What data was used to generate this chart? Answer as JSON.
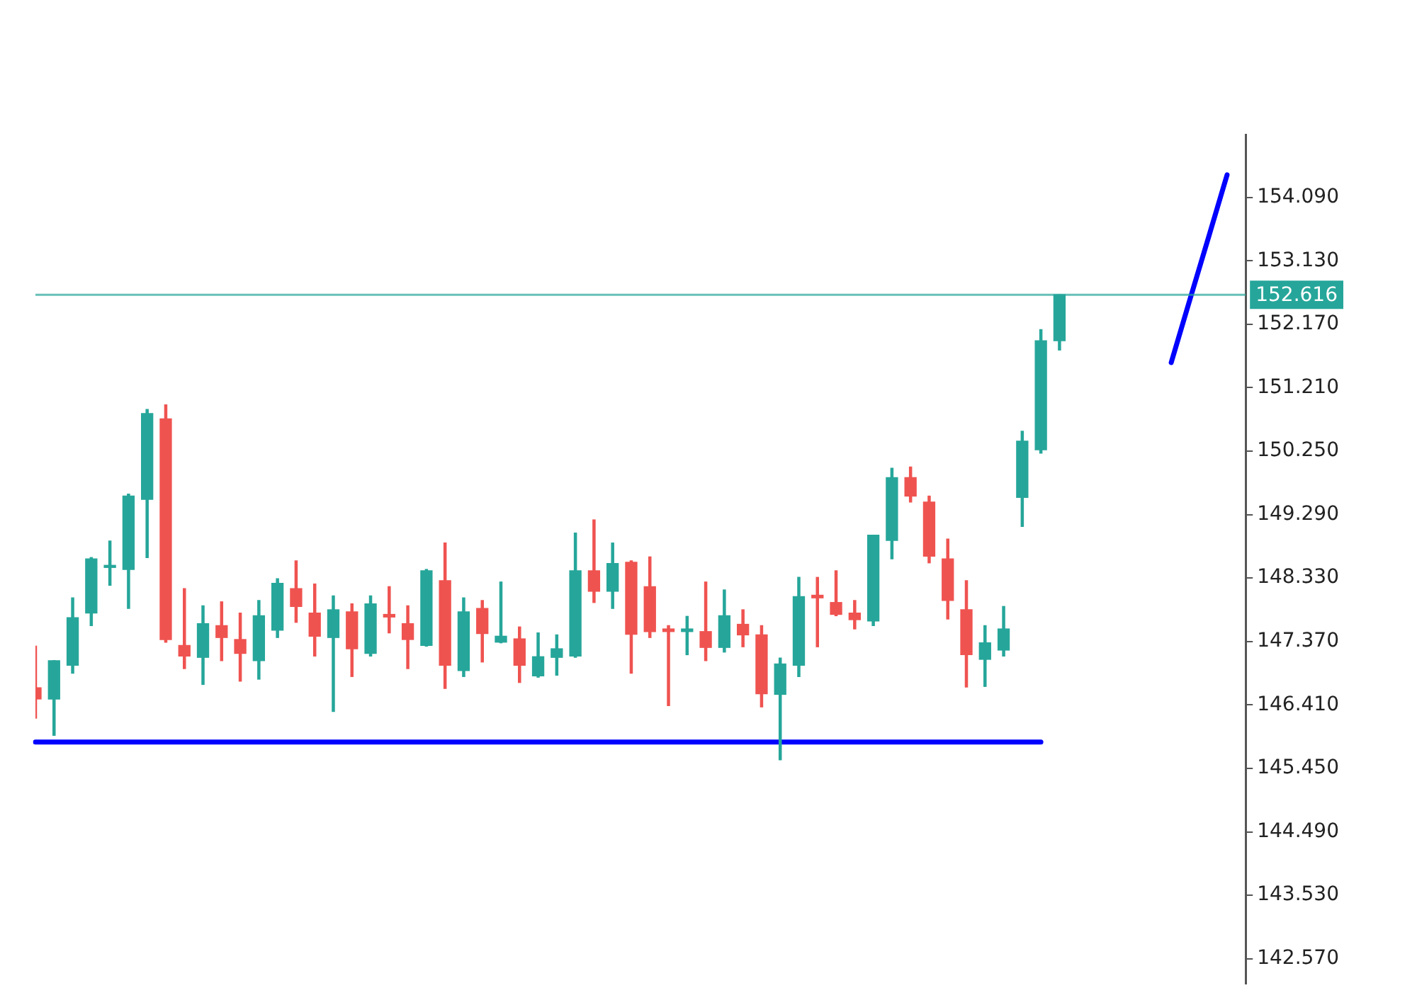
{
  "chart_data": {
    "type": "candlestick",
    "categories": [
      null,
      null,
      null,
      null,
      null,
      null,
      null,
      null,
      null,
      null,
      null,
      null,
      null,
      null,
      null,
      null,
      null,
      null,
      null,
      null,
      null,
      null,
      null,
      null,
      null,
      null,
      null,
      null,
      null,
      null,
      null,
      null,
      null,
      null,
      null,
      null,
      null,
      null,
      null,
      null,
      null,
      null,
      null,
      null,
      null,
      null,
      null,
      null,
      null,
      null,
      null,
      null,
      null,
      null,
      null,
      null,
      null,
      null,
      null,
      null,
      null,
      null,
      null,
      null,
      null,
      null
    ],
    "ohlc": [
      [
        146.67,
        147.3,
        146.21,
        146.5
      ],
      [
        146.5,
        147.08,
        145.95,
        147.08
      ],
      [
        147.01,
        148.03,
        146.89,
        147.73
      ],
      [
        147.8,
        148.64,
        147.61,
        148.62
      ],
      [
        148.49,
        148.89,
        148.22,
        148.52
      ],
      [
        148.46,
        149.6,
        147.87,
        149.57
      ],
      [
        149.52,
        150.88,
        148.64,
        150.82
      ],
      [
        150.74,
        150.95,
        147.36,
        147.4
      ],
      [
        147.31,
        148.17,
        146.96,
        147.15
      ],
      [
        147.13,
        147.91,
        146.72,
        147.64
      ],
      [
        147.61,
        147.97,
        147.08,
        147.43
      ],
      [
        147.4,
        147.8,
        146.77,
        147.19
      ],
      [
        147.08,
        147.99,
        146.8,
        147.76
      ],
      [
        147.54,
        148.32,
        147.43,
        148.25
      ],
      [
        148.17,
        148.59,
        147.66,
        147.9
      ],
      [
        147.8,
        148.24,
        147.15,
        147.45
      ],
      [
        147.43,
        148.06,
        146.31,
        147.85
      ],
      [
        147.82,
        147.94,
        146.84,
        147.26
      ],
      [
        147.19,
        148.06,
        147.15,
        147.94
      ],
      [
        147.78,
        148.2,
        147.5,
        147.74
      ],
      [
        147.64,
        147.91,
        146.96,
        147.4
      ],
      [
        147.31,
        148.46,
        147.3,
        148.44
      ],
      [
        148.29,
        148.86,
        146.66,
        147.01
      ],
      [
        146.93,
        148.03,
        146.84,
        147.82
      ],
      [
        147.87,
        147.99,
        147.06,
        147.49
      ],
      [
        147.36,
        148.27,
        147.35,
        147.45
      ],
      [
        147.41,
        147.59,
        146.75,
        147.01
      ],
      [
        146.85,
        147.5,
        146.83,
        147.14
      ],
      [
        147.13,
        147.47,
        146.86,
        147.26
      ],
      [
        147.15,
        149.01,
        147.13,
        148.44
      ],
      [
        148.44,
        149.21,
        147.96,
        148.13
      ],
      [
        148.13,
        148.86,
        147.87,
        148.55
      ],
      [
        148.57,
        148.59,
        146.89,
        147.48
      ],
      [
        148.2,
        148.65,
        147.43,
        147.52
      ],
      [
        147.56,
        147.61,
        146.4,
        147.52
      ],
      [
        147.52,
        147.75,
        147.17,
        147.56
      ],
      [
        147.52,
        148.27,
        147.08,
        147.28
      ],
      [
        147.28,
        148.15,
        147.21,
        147.76
      ],
      [
        147.63,
        147.85,
        147.29,
        147.47
      ],
      [
        147.47,
        147.61,
        146.38,
        146.58
      ],
      [
        146.57,
        147.12,
        145.58,
        147.03
      ],
      [
        147.01,
        148.34,
        146.84,
        148.05
      ],
      [
        148.07,
        148.34,
        147.29,
        148.03
      ],
      [
        147.96,
        148.44,
        147.76,
        147.78
      ],
      [
        147.8,
        147.99,
        147.56,
        147.7
      ],
      [
        147.68,
        148.98,
        147.61,
        148.98
      ],
      [
        148.9,
        149.99,
        148.62,
        149.85
      ],
      [
        149.85,
        150.01,
        149.48,
        149.57
      ],
      [
        149.48,
        149.57,
        148.56,
        148.66
      ],
      [
        148.62,
        148.92,
        147.71,
        147.99
      ],
      [
        147.85,
        148.29,
        146.68,
        147.17
      ],
      [
        147.1,
        147.61,
        146.69,
        147.35
      ],
      [
        147.24,
        147.9,
        147.15,
        147.56
      ],
      [
        149.55,
        150.55,
        149.11,
        150.4
      ],
      [
        150.27,
        152.09,
        150.22,
        151.92
      ],
      [
        151.92,
        152.616,
        151.78,
        152.616
      ],
      null,
      null,
      null,
      null,
      null,
      null,
      null,
      null,
      null,
      null
    ],
    "colors": [
      "#ef5350",
      "#26a69a",
      "#26a69a",
      "#26a69a",
      "#26a69a",
      "#26a69a",
      "#26a69a",
      "#ef5350",
      "#ef5350",
      "#26a69a",
      "#ef5350",
      "#ef5350",
      "#26a69a",
      "#26a69a",
      "#ef5350",
      "#ef5350",
      "#26a69a",
      "#ef5350",
      "#26a69a",
      "#ef5350",
      "#ef5350",
      "#26a69a",
      "#ef5350",
      "#26a69a",
      "#ef5350",
      "#26a69a",
      "#ef5350",
      "#26a69a",
      "#26a69a",
      "#26a69a",
      "#ef5350",
      "#26a69a",
      "#ef5350",
      "#ef5350",
      "#ef5350",
      "#26a69a",
      "#ef5350",
      "#26a69a",
      "#ef5350",
      "#ef5350",
      "#26a69a",
      "#26a69a",
      "#ef5350",
      "#ef5350",
      "#ef5350",
      "#26a69a",
      "#26a69a",
      "#ef5350",
      "#ef5350",
      "#ef5350",
      "#ef5350",
      "#26a69a",
      "#26a69a",
      "#26a69a",
      "#26a69a",
      "#26a69a",
      null,
      null,
      null,
      null,
      null,
      null,
      null,
      null,
      null,
      null
    ],
    "series": [
      {
        "type": "line",
        "color": "#0000ff",
        "values": [
          145.85,
          145.85,
          145.85,
          145.85,
          145.85,
          145.85,
          145.85,
          145.85,
          145.85,
          145.85,
          145.85,
          145.85,
          145.85,
          145.85,
          145.85,
          145.85,
          145.85,
          145.85,
          145.85,
          145.85,
          145.85,
          145.85,
          145.85,
          145.85,
          145.85,
          145.85,
          145.85,
          145.85,
          145.85,
          145.85,
          145.85,
          145.85,
          145.85,
          145.85,
          145.85,
          145.85,
          145.85,
          145.85,
          145.85,
          145.85,
          145.85,
          145.85,
          145.85,
          145.85,
          145.85,
          145.85,
          145.85,
          145.85,
          145.85,
          145.85,
          145.85,
          145.85,
          145.85,
          145.85,
          145.85,
          null,
          null,
          null,
          null,
          null,
          null,
          null,
          null,
          null,
          null,
          null
        ]
      },
      {
        "type": "line",
        "color": "#0000ff",
        "values": [
          null,
          null,
          null,
          null,
          null,
          null,
          null,
          null,
          null,
          null,
          null,
          null,
          null,
          null,
          null,
          null,
          null,
          null,
          null,
          null,
          null,
          null,
          null,
          null,
          null,
          null,
          null,
          null,
          null,
          null,
          null,
          null,
          null,
          null,
          null,
          null,
          null,
          null,
          null,
          null,
          null,
          null,
          null,
          null,
          null,
          null,
          null,
          null,
          null,
          null,
          null,
          null,
          null,
          null,
          null,
          null,
          null,
          null,
          null,
          null,
          null,
          151.59,
          152.54,
          153.48,
          154.43,
          null
        ]
      }
    ],
    "ylim": [
      142.19,
      155.04
    ],
    "yticks": [
      {
        "value": 142.57,
        "label": "142.570"
      },
      {
        "value": 143.53,
        "label": "143.530"
      },
      {
        "value": 144.49,
        "label": "144.490"
      },
      {
        "value": 145.45,
        "label": "145.450"
      },
      {
        "value": 146.41,
        "label": "146.410"
      },
      {
        "value": 147.37,
        "label": "147.370"
      },
      {
        "value": 148.33,
        "label": "148.330"
      },
      {
        "value": 149.29,
        "label": "149.290"
      },
      {
        "value": 150.25,
        "label": "150.250"
      },
      {
        "value": 151.21,
        "label": "151.210"
      },
      {
        "value": 152.17,
        "label": "152.170"
      },
      {
        "value": 153.13,
        "label": "153.130"
      },
      {
        "value": 154.09,
        "label": "154.090"
      }
    ],
    "ref_lines": [
      {
        "axis": "y",
        "value": 152.616,
        "label": "152.616",
        "color": "#26a69a"
      }
    ],
    "tick_labels": "y",
    "grid": false,
    "legend": false
  }
}
